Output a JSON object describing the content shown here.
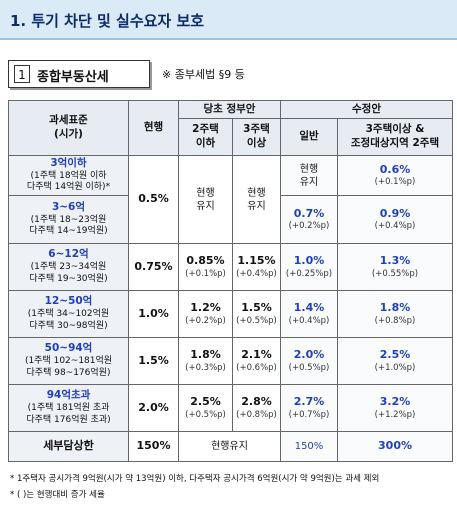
{
  "header": {
    "title": "1. 투기 차단 및 실수요자 보호"
  },
  "section": {
    "number": "1",
    "title": "종합부동산세",
    "note": "※ 종부세법 §9 등"
  },
  "table": {
    "headers": {
      "base": "과세표준\n(시가)",
      "current": "현행",
      "gov": "당초 정부안",
      "gov_cols": [
        "2주택\n이하",
        "3주택\n이상"
      ],
      "revised": "수정안",
      "revised_cols": [
        "일반",
        "3주택이상 &\n조정대상지역 2주택"
      ]
    },
    "rows": [
      {
        "bracket": "3억이하",
        "detail": "(1주택 18억원 이하\n다주택 14억원 이하)*",
        "current": "0.5%",
        "gov2": "현행\n유지",
        "gov3": "현행\n유지",
        "general": "현행\n유지",
        "multi": "0.6%",
        "multi_change": "(+0.1%p)"
      },
      {
        "bracket": "3~6억",
        "detail": "(1주택 18~23억원\n다주택 14~19억원)",
        "general": "0.7%",
        "general_change": "(+0.2%p)",
        "multi": "0.9%",
        "multi_change": "(+0.4%p)"
      },
      {
        "bracket": "6~12억",
        "detail": "(1주택 23~34억원\n다주택 19~30억원)",
        "current": "0.75%",
        "gov2": "0.85%",
        "gov2_change": "(+0.1%p)",
        "gov3": "1.15%",
        "gov3_change": "(+0.4%p)",
        "general": "1.0%",
        "general_change": "(+0.25%p)",
        "multi": "1.3%",
        "multi_change": "(+0.55%p)"
      },
      {
        "bracket": "12~50억",
        "detail": "(1주택 34~102억원\n다주택 30~98억원)",
        "current": "1.0%",
        "gov2": "1.2%",
        "gov2_change": "(+0.2%p)",
        "gov3": "1.5%",
        "gov3_change": "(+0.5%p)",
        "general": "1.4%",
        "general_change": "(+0.4%p)",
        "multi": "1.8%",
        "multi_change": "(+0.8%p)"
      },
      {
        "bracket": "50~94억",
        "detail": "(1주택 102~181억원\n다주택 98~176억원)",
        "current": "1.5%",
        "gov2": "1.8%",
        "gov2_change": "(+0.3%p)",
        "gov3": "2.1%",
        "gov3_change": "(+0.6%p)",
        "general": "2.0%",
        "general_change": "(+0.5%p)",
        "multi": "2.5%",
        "multi_change": "(+1.0%p)"
      },
      {
        "bracket": "94억초과",
        "detail": "(1주택 181억원 초과\n다주택 176억원 초과)",
        "current": "2.0%",
        "gov2": "2.5%",
        "gov2_change": "(+0.5%p)",
        "gov3": "2.8%",
        "gov3_change": "(+0.8%p)",
        "general": "2.7%",
        "general_change": "(+0.7%p)",
        "multi": "3.2%",
        "multi_change": "(+1.2%p)"
      }
    ],
    "cap": {
      "label": "세부담상한",
      "current": "150%",
      "gov": "현행유지",
      "general": "150%",
      "multi": "300%"
    }
  },
  "footnotes": [
    "* 1주택자 공시가격 9억원(시가 약 13억원) 이하, 다주택자 공시가격 6억원(시가 약 9억원)는 과세 제외",
    "* ( )는 현행대비 증가 세율"
  ]
}
